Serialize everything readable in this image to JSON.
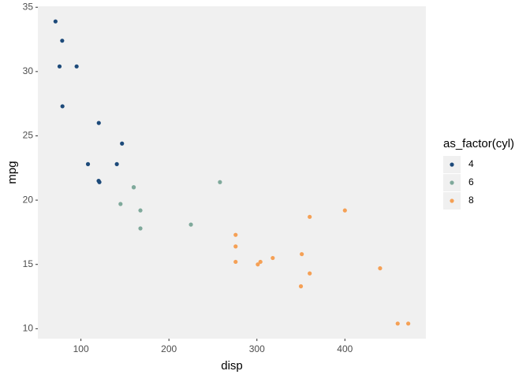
{
  "chart_data": {
    "type": "scatter",
    "x_label": "disp",
    "y_label": "mpg",
    "legend_title": "as_factor(cyl)",
    "xlim": [
      51.05,
      492.05
    ],
    "ylim": [
      9.225,
      35.075
    ],
    "xticks": [
      100,
      200,
      300,
      400
    ],
    "yticks": [
      10,
      15,
      20,
      25,
      30,
      35
    ],
    "grid": false,
    "legend_position": "right",
    "series": [
      {
        "name": "4",
        "color": "#1d4a7a",
        "x": [
          108,
          146.7,
          140.8,
          78.7,
          75.7,
          71.1,
          120.1,
          79,
          120.3,
          95.1,
          121
        ],
        "values": [
          22.8,
          24.4,
          22.8,
          32.4,
          30.4,
          33.9,
          21.5,
          27.3,
          26.0,
          30.4,
          21.4
        ]
      },
      {
        "name": "6",
        "color": "#7fa99b",
        "x": [
          160,
          160,
          258,
          225,
          167.6,
          167.6,
          145
        ],
        "values": [
          21.0,
          21.0,
          21.4,
          18.1,
          19.2,
          17.8,
          19.7
        ]
      },
      {
        "name": "8",
        "color": "#f5a055",
        "x": [
          360,
          360,
          275.8,
          275.8,
          275.8,
          472,
          460,
          440,
          318,
          304,
          350,
          400,
          351,
          301
        ],
        "values": [
          18.7,
          14.3,
          16.4,
          17.3,
          15.2,
          10.4,
          10.4,
          14.7,
          15.5,
          15.2,
          13.3,
          19.2,
          15.8,
          15.0
        ]
      }
    ]
  }
}
